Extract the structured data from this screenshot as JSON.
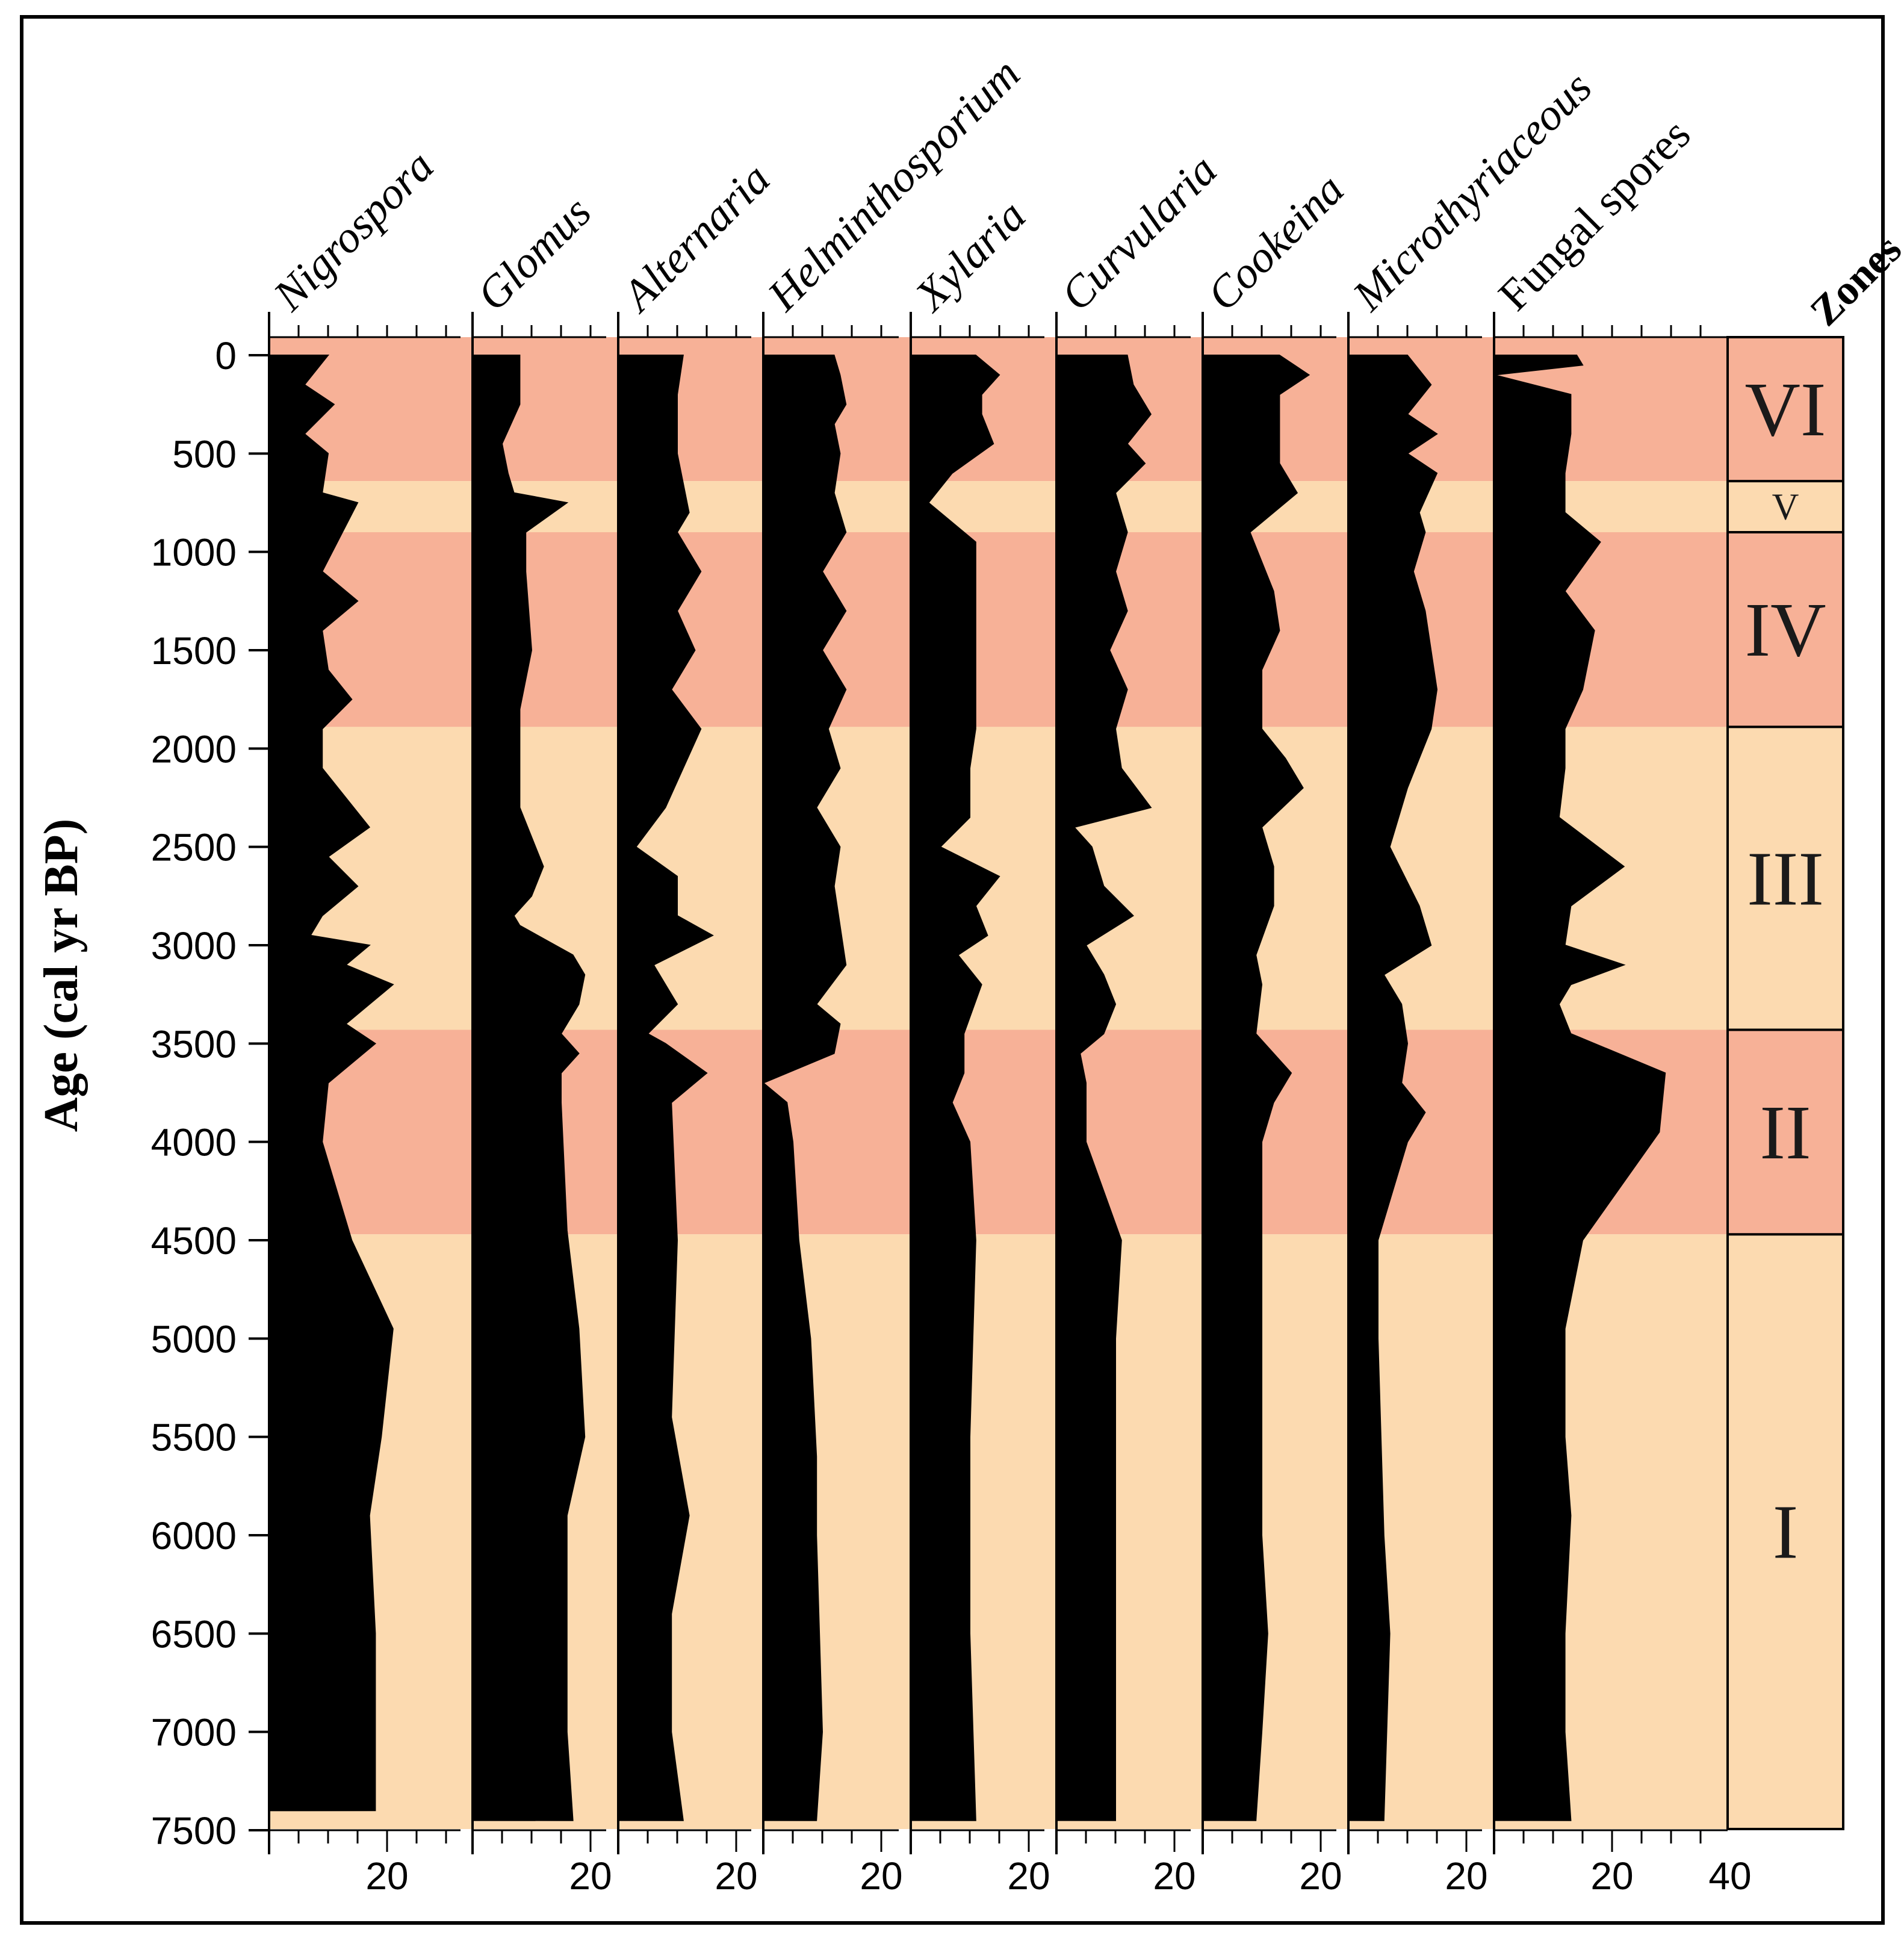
{
  "chart_data": {
    "type": "area",
    "subtype": "pollen-diagram",
    "ylabel": "Age (cal yr BP)",
    "ylim": [
      0,
      7500
    ],
    "yticks": [
      0,
      500,
      1000,
      1500,
      2000,
      2500,
      3000,
      3500,
      4000,
      4500,
      5000,
      5500,
      6000,
      6500,
      7000,
      7500
    ],
    "x_unit": "percent",
    "zones_title": "Zones",
    "zones": [
      {
        "label": "VI",
        "from": 0,
        "to": 640,
        "color": "#f7b197"
      },
      {
        "label": "V",
        "from": 640,
        "to": 900,
        "color": "#fcdab0"
      },
      {
        "label": "IV",
        "from": 900,
        "to": 1890,
        "color": "#f7b197"
      },
      {
        "label": "III",
        "from": 1890,
        "to": 3430,
        "color": "#fcdab0"
      },
      {
        "label": "II",
        "from": 3430,
        "to": 4470,
        "color": "#f7b197"
      },
      {
        "label": "I",
        "from": 4470,
        "to": 7500,
        "color": "#fcdab0"
      }
    ],
    "series": [
      {
        "name": "Nigrospora",
        "italic": true,
        "xmax": 34,
        "tick_label": "20",
        "ages": [
          0,
          150,
          250,
          400,
          500,
          700,
          750,
          1100,
          1250,
          1400,
          1600,
          1750,
          1900,
          2100,
          2400,
          2550,
          2700,
          2850,
          2950,
          3000,
          3100,
          3200,
          3300,
          3400,
          3500,
          3700,
          4000,
          4500,
          4950,
          5500,
          5900,
          6500,
          7000,
          7400
        ],
        "values": [
          10,
          6,
          11,
          6,
          10,
          9,
          15,
          9,
          15,
          9,
          10,
          14,
          9,
          9,
          17,
          10,
          15,
          9,
          7,
          17,
          13,
          21,
          17,
          13,
          18,
          10,
          9,
          14,
          21,
          19,
          17,
          18,
          18,
          18
        ]
      },
      {
        "name": "Glomus",
        "italic": true,
        "xmax": 20,
        "tick_label": "20",
        "ages": [
          0,
          250,
          450,
          600,
          700,
          750,
          900,
          1100,
          1500,
          1800,
          2300,
          2600,
          2750,
          2850,
          2900,
          3050,
          3150,
          3300,
          3450,
          3550,
          3650,
          3800,
          4450,
          4950,
          5500,
          5900,
          6500,
          7000,
          7450
        ],
        "values": [
          8,
          8,
          5,
          6,
          7,
          16,
          9,
          9,
          10,
          8,
          8,
          12,
          10,
          7,
          8,
          17,
          19,
          18,
          15,
          18,
          15,
          15,
          16,
          18,
          19,
          16,
          16,
          16,
          17
        ]
      },
      {
        "name": "Alternaria",
        "italic": true,
        "xmax": 20,
        "tick_label": "20",
        "ages": [
          0,
          200,
          400,
          500,
          800,
          900,
          1100,
          1300,
          1500,
          1700,
          1900,
          2100,
          2300,
          2500,
          2650,
          2850,
          2950,
          3100,
          3300,
          3450,
          3500,
          3650,
          3800,
          4500,
          5400,
          5900,
          6400,
          7000,
          7450
        ],
        "values": [
          11,
          10,
          10,
          10,
          12,
          10,
          14,
          10,
          13,
          9,
          14,
          11,
          8,
          3,
          10,
          10,
          16,
          6,
          10,
          5,
          8,
          15,
          9,
          10,
          9,
          12,
          9,
          9,
          11
        ]
      },
      {
        "name": "Helminthosporium",
        "italic": true,
        "xmax": 20,
        "tick_label": "20",
        "ages": [
          0,
          100,
          250,
          350,
          500,
          700,
          900,
          1100,
          1300,
          1500,
          1700,
          1900,
          2100,
          2300,
          2500,
          2700,
          2900,
          3100,
          3300,
          3400,
          3550,
          3700,
          3800,
          4000,
          4500,
          5000,
          5600,
          6000,
          7000,
          7450
        ],
        "values": [
          12,
          13,
          14,
          12,
          13,
          12,
          14,
          10,
          14,
          10,
          14,
          11,
          13,
          9,
          13,
          12,
          13,
          14,
          9,
          13,
          12,
          0,
          4,
          5,
          6,
          8,
          9,
          9,
          10,
          9
        ]
      },
      {
        "name": "Xylaria",
        "italic": true,
        "xmax": 20,
        "tick_label": "20",
        "ages": [
          0,
          100,
          200,
          300,
          450,
          600,
          750,
          950,
          1100,
          1400,
          1650,
          1900,
          2100,
          2350,
          2500,
          2650,
          2800,
          2950,
          3050,
          3200,
          3450,
          3650,
          3800,
          4000,
          4500,
          5500,
          6500,
          7450
        ],
        "values": [
          11,
          15,
          12,
          12,
          14,
          7,
          3,
          11,
          11,
          11,
          11,
          11,
          10,
          10,
          5,
          15,
          11,
          13,
          8,
          12,
          9,
          9,
          7,
          10,
          11,
          10,
          10,
          11
        ]
      },
      {
        "name": "Curvularia",
        "italic": true,
        "xmax": 20,
        "tick_label": "20",
        "ages": [
          0,
          150,
          300,
          450,
          550,
          700,
          900,
          1100,
          1300,
          1500,
          1700,
          1900,
          2100,
          2300,
          2400,
          2500,
          2700,
          2850,
          3000,
          3150,
          3300,
          3450,
          3550,
          3700,
          4000,
          4500,
          5000,
          6000,
          7000,
          7450
        ],
        "values": [
          12,
          13,
          16,
          12,
          15,
          10,
          12,
          10,
          12,
          9,
          12,
          10,
          11,
          16,
          3,
          6,
          8,
          13,
          5,
          8,
          10,
          8,
          4,
          5,
          5,
          11,
          10,
          10,
          10,
          10
        ]
      },
      {
        "name": "Cookeina",
        "italic": true,
        "xmax": 20,
        "tick_label": "20",
        "ages": [
          0,
          100,
          200,
          350,
          550,
          700,
          900,
          1200,
          1400,
          1600,
          1900,
          2050,
          2200,
          2400,
          2600,
          2800,
          3050,
          3200,
          3450,
          3650,
          3800,
          4000,
          4500,
          5000,
          6000,
          6500,
          7000,
          7450
        ],
        "values": [
          13,
          18,
          13,
          13,
          13,
          16,
          8,
          12,
          13,
          10,
          10,
          14,
          17,
          10,
          12,
          12,
          9,
          10,
          9,
          15,
          12,
          10,
          10,
          10,
          10,
          11,
          10,
          9
        ]
      },
      {
        "name": "Microthyriaceous",
        "italic": true,
        "xmax": 20,
        "tick_label": "20",
        "ages": [
          0,
          150,
          300,
          400,
          500,
          600,
          800,
          900,
          1100,
          1300,
          1700,
          1900,
          2200,
          2500,
          2800,
          3000,
          3150,
          3300,
          3500,
          3700,
          3850,
          4000,
          4500,
          5000,
          6000,
          6500,
          7450
        ],
        "values": [
          10,
          14,
          10,
          15,
          10,
          15,
          12,
          13,
          11,
          13,
          15,
          14,
          10,
          7,
          12,
          14,
          6,
          9,
          10,
          9,
          13,
          10,
          5,
          5,
          6,
          7,
          6
        ]
      },
      {
        "name": "Fungal spores",
        "italic": false,
        "xmax": 40,
        "tick_label": "20",
        "extra_tick_label": "40",
        "ages": [
          0,
          50,
          100,
          200,
          400,
          600,
          800,
          950,
          1200,
          1400,
          1700,
          1900,
          2100,
          2350,
          2600,
          2800,
          3000,
          3100,
          3200,
          3300,
          3450,
          3650,
          3950,
          4500,
          4950,
          5500,
          5900,
          6500,
          7000,
          7450
        ],
        "values": [
          14,
          15,
          0,
          13,
          13,
          12,
          12,
          18,
          12,
          17,
          15,
          12,
          12,
          11,
          22,
          13,
          12,
          22,
          13,
          11,
          13,
          29,
          28,
          15,
          12,
          12,
          13,
          12,
          12,
          13
        ]
      }
    ]
  }
}
